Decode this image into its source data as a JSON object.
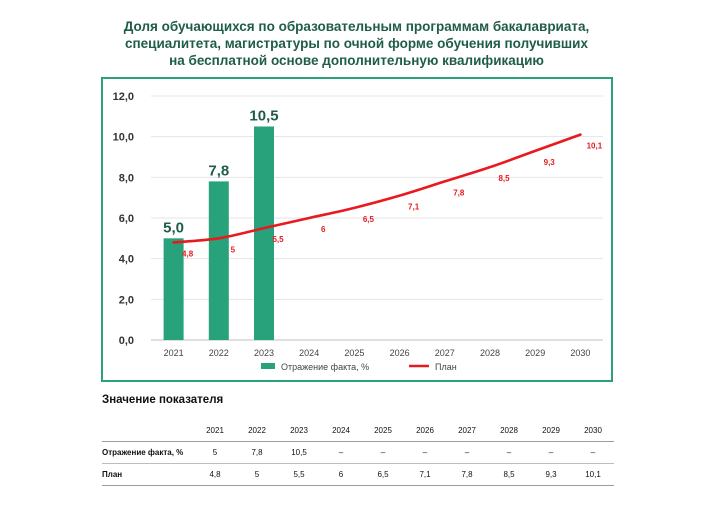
{
  "title_lines": [
    "Доля обучающихся по образовательным программам бакалавриата,",
    "специалитета, магистратуры по очной форме обучения получивших",
    "на бесплатной основе дополнительную квалификацию"
  ],
  "colors": {
    "bar": "#27a27a",
    "line": "#e8191f",
    "frame": "#2aa275",
    "title": "#1f5c4a"
  },
  "chart_data": {
    "type": "bar",
    "categories": [
      "2021",
      "2022",
      "2023",
      "2024",
      "2025",
      "2026",
      "2027",
      "2028",
      "2029",
      "2030"
    ],
    "ylim": [
      0,
      12
    ],
    "yticks": [
      "0,0",
      "2,0",
      "4,0",
      "6,0",
      "8,0",
      "10,0",
      "12,0"
    ],
    "grid": true,
    "legend_position": "bottom",
    "series": [
      {
        "name": "Отражение факта, %",
        "type": "bar",
        "values": [
          5.0,
          7.8,
          10.5,
          null,
          null,
          null,
          null,
          null,
          null,
          null
        ],
        "labels": [
          "5,0",
          "7,8",
          "10,5",
          "",
          "",
          "",
          "",
          "",
          "",
          ""
        ]
      },
      {
        "name": "План",
        "type": "line",
        "values": [
          4.8,
          5,
          5.5,
          6,
          6.5,
          7.1,
          7.8,
          8.5,
          9.3,
          10.1
        ],
        "labels": [
          "4,8",
          "5",
          "5,5",
          "6",
          "6,5",
          "7,1",
          "7,8",
          "8,5",
          "9,3",
          "10,1"
        ]
      }
    ]
  },
  "table": {
    "title": "Значение показателя",
    "years": [
      "2021",
      "2022",
      "2023",
      "2024",
      "2025",
      "2026",
      "2027",
      "2028",
      "2029",
      "2030"
    ],
    "rows": [
      {
        "label": "Отражение факта, %",
        "values": [
          "5",
          "7,8",
          "10,5",
          "–",
          "–",
          "–",
          "–",
          "–",
          "–",
          "–"
        ]
      },
      {
        "label": "План",
        "values": [
          "4,8",
          "5",
          "5,5",
          "6",
          "6,5",
          "7,1",
          "7,8",
          "8,5",
          "9,3",
          "10,1"
        ]
      }
    ]
  }
}
